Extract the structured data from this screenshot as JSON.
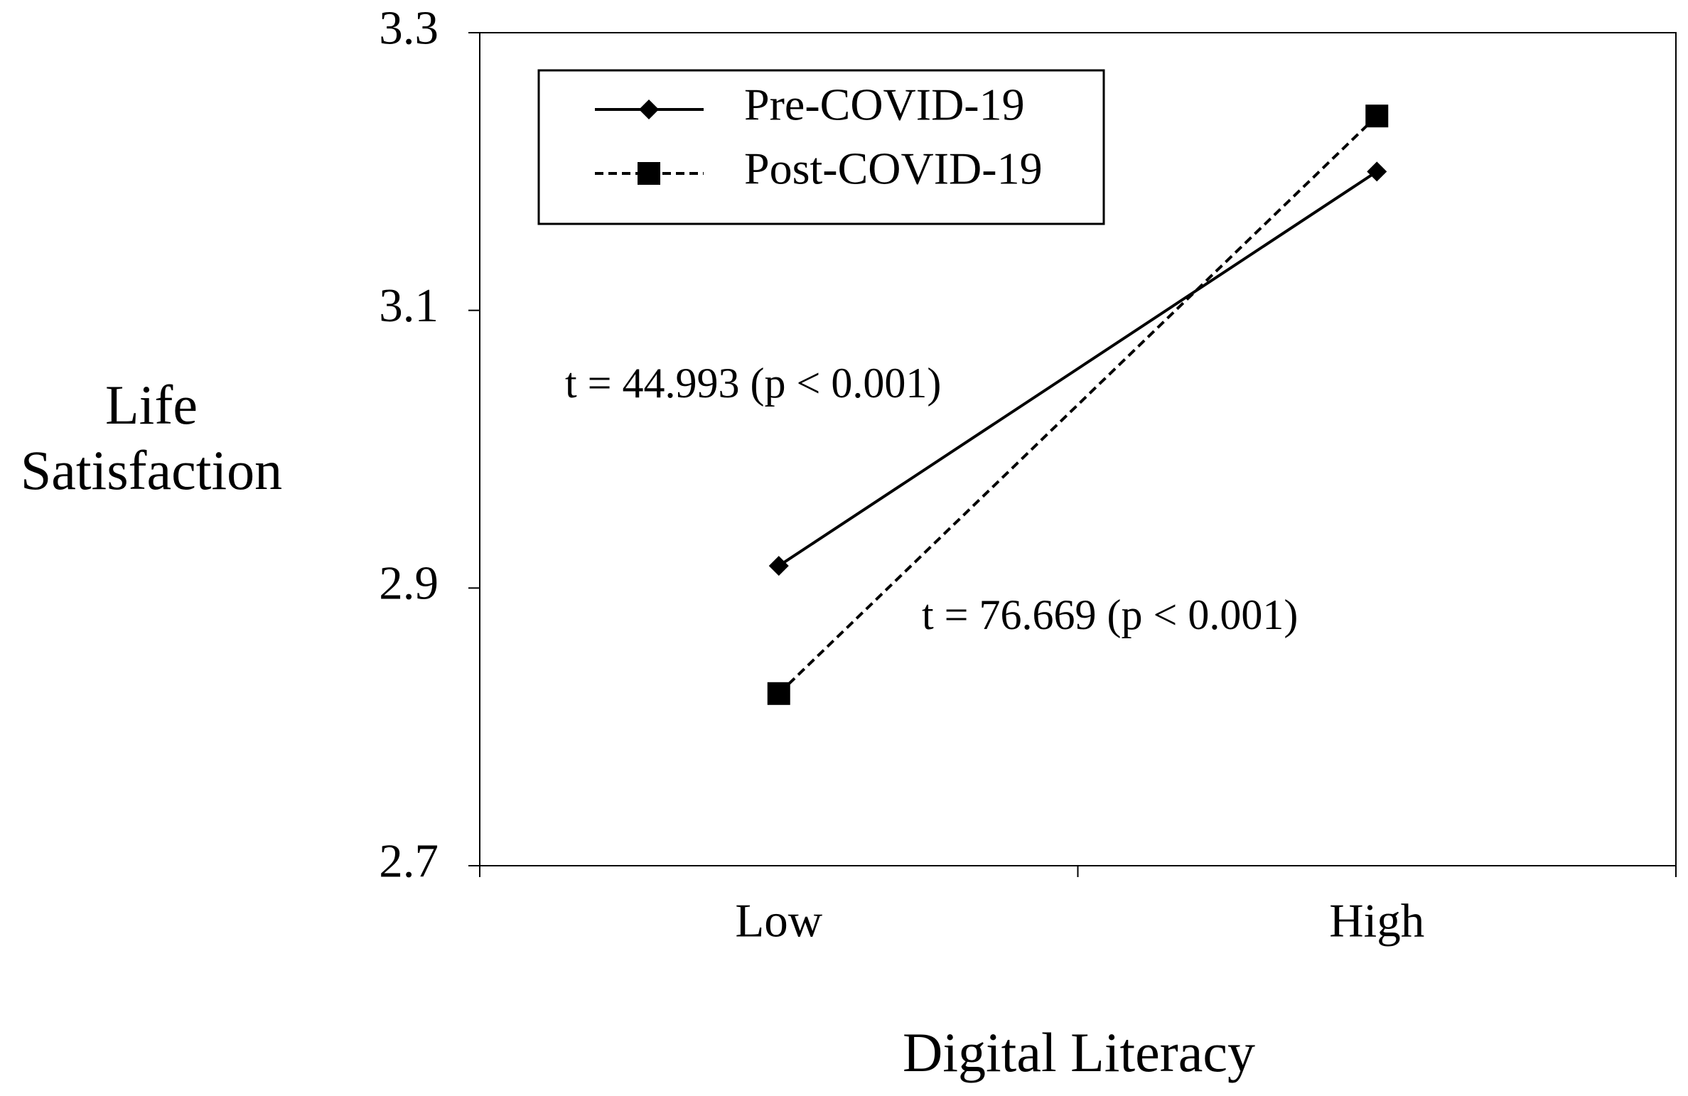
{
  "chart_data": {
    "type": "line",
    "xlabel": "Digital Literacy",
    "ylabel": "Life Satisfaction",
    "categories": [
      "Low",
      "High"
    ],
    "series": [
      {
        "name": "Pre-COVID-19",
        "color": "#000000",
        "dash": "solid",
        "marker": "diamond",
        "values": [
          2.916,
          3.2
        ]
      },
      {
        "name": "Post-COVID-19",
        "color": "#000000",
        "dash": "dashed",
        "marker": "square",
        "values": [
          2.824,
          3.24
        ]
      }
    ],
    "annotations": [
      "t = 44.993 (p < 0.001)",
      "t = 76.669 (p < 0.001)"
    ],
    "ylim": [
      2.7,
      3.3
    ],
    "yticks": [
      2.7,
      2.9,
      3.1,
      3.3
    ],
    "grid": false,
    "legend": "upper left"
  }
}
